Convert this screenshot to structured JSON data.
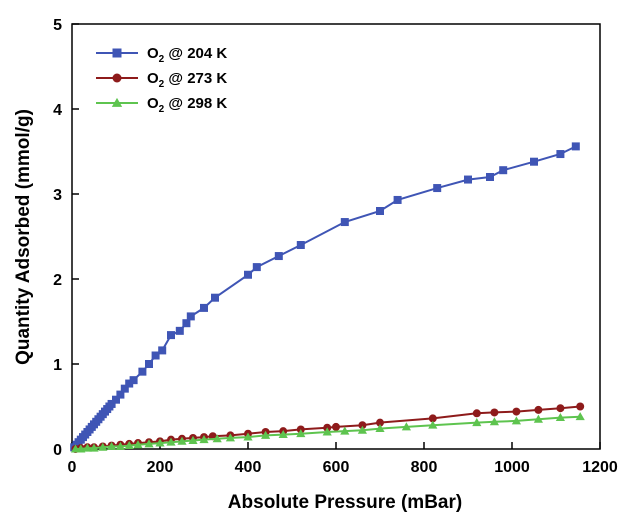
{
  "chart_data": {
    "type": "line",
    "xlabel": "Absolute Pressure (mBar)",
    "ylabel": "Quantity Adsorbed (mmol/g)",
    "xlim": [
      0,
      1200
    ],
    "ylim": [
      0,
      5
    ],
    "xticks": [
      0,
      200,
      400,
      600,
      800,
      1000,
      1200
    ],
    "yticks": [
      0,
      1,
      2,
      3,
      4,
      5
    ],
    "grid": false,
    "legend": "top-left",
    "series": [
      {
        "name": "O2 @ 204 K",
        "label_main": "O",
        "label_sub": "2",
        "label_rest": " @ 204 K",
        "color": "#3f55b5",
        "marker": "square",
        "points": [
          [
            5,
            0.02
          ],
          [
            10,
            0.05
          ],
          [
            15,
            0.08
          ],
          [
            20,
            0.11
          ],
          [
            25,
            0.14
          ],
          [
            30,
            0.17
          ],
          [
            35,
            0.2
          ],
          [
            40,
            0.23
          ],
          [
            45,
            0.26
          ],
          [
            50,
            0.29
          ],
          [
            55,
            0.32
          ],
          [
            60,
            0.35
          ],
          [
            65,
            0.38
          ],
          [
            70,
            0.41
          ],
          [
            75,
            0.44
          ],
          [
            80,
            0.47
          ],
          [
            85,
            0.5
          ],
          [
            90,
            0.53
          ],
          [
            100,
            0.58
          ],
          [
            110,
            0.64
          ],
          [
            120,
            0.71
          ],
          [
            130,
            0.77
          ],
          [
            140,
            0.81
          ],
          [
            160,
            0.91
          ],
          [
            175,
            1.0
          ],
          [
            190,
            1.1
          ],
          [
            205,
            1.16
          ],
          [
            225,
            1.34
          ],
          [
            245,
            1.39
          ],
          [
            260,
            1.48
          ],
          [
            270,
            1.56
          ],
          [
            300,
            1.66
          ],
          [
            325,
            1.78
          ],
          [
            400,
            2.05
          ],
          [
            420,
            2.14
          ],
          [
            470,
            2.27
          ],
          [
            520,
            2.4
          ],
          [
            620,
            2.67
          ],
          [
            700,
            2.8
          ],
          [
            740,
            2.93
          ],
          [
            830,
            3.07
          ],
          [
            900,
            3.17
          ],
          [
            950,
            3.2
          ],
          [
            980,
            3.28
          ],
          [
            1050,
            3.38
          ],
          [
            1110,
            3.47
          ],
          [
            1145,
            3.56
          ]
        ]
      },
      {
        "name": "O2 @ 273 K",
        "label_main": "O",
        "label_sub": "2",
        "label_rest": " @ 273 K",
        "color": "#8e1b1b",
        "marker": "circle",
        "points": [
          [
            8,
            0.0
          ],
          [
            20,
            0.01
          ],
          [
            35,
            0.02
          ],
          [
            50,
            0.02
          ],
          [
            70,
            0.03
          ],
          [
            90,
            0.04
          ],
          [
            110,
            0.05
          ],
          [
            130,
            0.06
          ],
          [
            150,
            0.07
          ],
          [
            175,
            0.08
          ],
          [
            200,
            0.09
          ],
          [
            225,
            0.11
          ],
          [
            250,
            0.12
          ],
          [
            275,
            0.13
          ],
          [
            300,
            0.14
          ],
          [
            320,
            0.15
          ],
          [
            360,
            0.16
          ],
          [
            400,
            0.18
          ],
          [
            440,
            0.2
          ],
          [
            480,
            0.21
          ],
          [
            520,
            0.23
          ],
          [
            580,
            0.25
          ],
          [
            600,
            0.26
          ],
          [
            660,
            0.28
          ],
          [
            700,
            0.31
          ],
          [
            820,
            0.36
          ],
          [
            920,
            0.42
          ],
          [
            960,
            0.43
          ],
          [
            1010,
            0.44
          ],
          [
            1060,
            0.46
          ],
          [
            1110,
            0.48
          ],
          [
            1155,
            0.5
          ]
        ]
      },
      {
        "name": "O2 @ 298 K",
        "label_main": "O",
        "label_sub": "2",
        "label_rest": " @ 298 K",
        "color": "#5ec44f",
        "marker": "triangle",
        "points": [
          [
            8,
            0.0
          ],
          [
            20,
            0.0
          ],
          [
            35,
            0.01
          ],
          [
            50,
            0.01
          ],
          [
            70,
            0.02
          ],
          [
            90,
            0.03
          ],
          [
            110,
            0.03
          ],
          [
            130,
            0.04
          ],
          [
            150,
            0.05
          ],
          [
            175,
            0.06
          ],
          [
            200,
            0.07
          ],
          [
            225,
            0.08
          ],
          [
            250,
            0.09
          ],
          [
            275,
            0.1
          ],
          [
            300,
            0.11
          ],
          [
            330,
            0.12
          ],
          [
            360,
            0.13
          ],
          [
            400,
            0.14
          ],
          [
            440,
            0.16
          ],
          [
            480,
            0.17
          ],
          [
            520,
            0.18
          ],
          [
            580,
            0.2
          ],
          [
            620,
            0.21
          ],
          [
            660,
            0.22
          ],
          [
            700,
            0.24
          ],
          [
            760,
            0.26
          ],
          [
            820,
            0.28
          ],
          [
            920,
            0.31
          ],
          [
            960,
            0.32
          ],
          [
            1010,
            0.33
          ],
          [
            1060,
            0.35
          ],
          [
            1110,
            0.37
          ],
          [
            1155,
            0.38
          ]
        ]
      }
    ]
  }
}
